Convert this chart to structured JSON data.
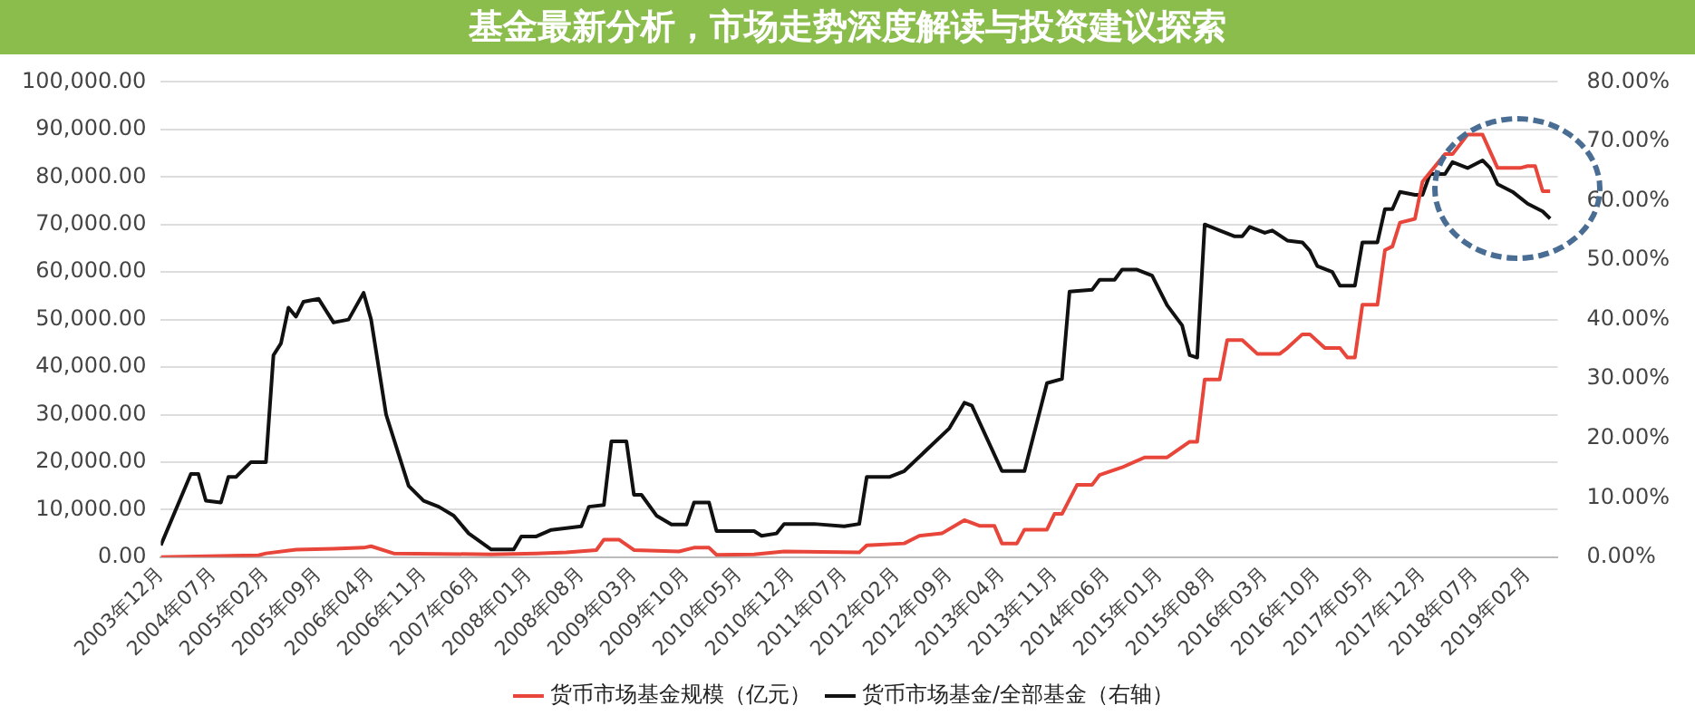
{
  "chart_data": {
    "type": "line",
    "title": "基金最新分析，市场走势深度解读与投资建议探索",
    "xlim": [
      "2003-12",
      "2019-06"
    ],
    "xticks": [
      {
        "value": "2003-12",
        "label": "2003年12月"
      },
      {
        "value": "2004-07",
        "label": "2004年07月"
      },
      {
        "value": "2005-02",
        "label": "2005年02月"
      },
      {
        "value": "2005-09",
        "label": "2005年09月"
      },
      {
        "value": "2006-04",
        "label": "2006年04月"
      },
      {
        "value": "2006-11",
        "label": "2006年11月"
      },
      {
        "value": "2007-06",
        "label": "2007年06月"
      },
      {
        "value": "2008-01",
        "label": "2008年01月"
      },
      {
        "value": "2008-08",
        "label": "2008年08月"
      },
      {
        "value": "2009-03",
        "label": "2009年03月"
      },
      {
        "value": "2009-10",
        "label": "2009年10月"
      },
      {
        "value": "2010-05",
        "label": "2010年05月"
      },
      {
        "value": "2010-12",
        "label": "2010年12月"
      },
      {
        "value": "2011-07",
        "label": "2011年07月"
      },
      {
        "value": "2012-02",
        "label": "2012年02月"
      },
      {
        "value": "2012-09",
        "label": "2012年09月"
      },
      {
        "value": "2013-04",
        "label": "2013年04月"
      },
      {
        "value": "2013-11",
        "label": "2013年11月"
      },
      {
        "value": "2014-06",
        "label": "2014年06月"
      },
      {
        "value": "2015-01",
        "label": "2015年01月"
      },
      {
        "value": "2015-08",
        "label": "2015年08月"
      },
      {
        "value": "2016-03",
        "label": "2016年03月"
      },
      {
        "value": "2016-10",
        "label": "2016年10月"
      },
      {
        "value": "2017-05",
        "label": "2017年05月"
      },
      {
        "value": "2017-12",
        "label": "2017年12月"
      },
      {
        "value": "2018-07",
        "label": "2018年07月"
      },
      {
        "value": "2019-02",
        "label": "2019年02月"
      }
    ],
    "ylim": [
      0,
      100000
    ],
    "yticks": [
      {
        "value": 0,
        "label": "0.00"
      },
      {
        "value": 10000,
        "label": "10,000.00"
      },
      {
        "value": 20000,
        "label": "20,000.00"
      },
      {
        "value": 30000,
        "label": "30,000.00"
      },
      {
        "value": 40000,
        "label": "40,000.00"
      },
      {
        "value": 50000,
        "label": "50,000.00"
      },
      {
        "value": 60000,
        "label": "60,000.00"
      },
      {
        "value": 70000,
        "label": "70,000.00"
      },
      {
        "value": 80000,
        "label": "80,000.00"
      },
      {
        "value": 90000,
        "label": "90,000.00"
      },
      {
        "value": 100000,
        "label": "100,000.00"
      }
    ],
    "y2lim": [
      0,
      80
    ],
    "y2ticks": [
      {
        "value": 0,
        "label": "0.00%"
      },
      {
        "value": 10,
        "label": "10.00%"
      },
      {
        "value": 20,
        "label": "20.00%"
      },
      {
        "value": 30,
        "label": "30.00%"
      },
      {
        "value": 40,
        "label": "40.00%"
      },
      {
        "value": 50,
        "label": "50.00%"
      },
      {
        "value": 60,
        "label": "60.00%"
      },
      {
        "value": 70,
        "label": "70.00%"
      },
      {
        "value": 80,
        "label": "80.00%"
      }
    ],
    "grid": "y",
    "legend": "bottom",
    "marker": "none",
    "line_style": "solid",
    "series": [
      {
        "name": "货币市场基金规模（亿元）",
        "color": "#e8463a",
        "x": [
          "2003-12",
          "2005-01",
          "2005-02",
          "2005-06",
          "2005-11",
          "2006-03",
          "2006-04",
          "2006-07",
          "2007-08",
          "2008-02",
          "2008-06",
          "2008-10",
          "2008-11",
          "2009-01",
          "2009-03",
          "2009-09",
          "2009-11",
          "2010-01",
          "2010-02",
          "2010-07",
          "2010-11",
          "2011-09",
          "2011-10",
          "2012-03",
          "2012-05",
          "2012-08",
          "2012-11",
          "2013-01",
          "2013-03",
          "2013-04",
          "2013-06",
          "2013-07",
          "2013-10",
          "2013-11",
          "2013-12",
          "2014-02",
          "2014-04",
          "2014-05",
          "2014-08",
          "2014-11",
          "2015-02",
          "2015-05",
          "2015-06",
          "2015-07",
          "2015-09",
          "2015-10",
          "2015-12",
          "2016-02",
          "2016-05",
          "2016-06",
          "2016-08",
          "2016-09",
          "2016-11",
          "2017-01",
          "2017-02",
          "2017-03",
          "2017-04",
          "2017-06",
          "2017-07",
          "2017-08",
          "2017-09",
          "2017-11",
          "2017-12",
          "2018-03",
          "2018-04",
          "2018-06",
          "2018-08",
          "2018-10",
          "2019-01",
          "2019-02",
          "2019-03",
          "2019-04",
          "2019-05"
        ],
        "values": [
          0,
          400,
          800,
          1600,
          1800,
          2000,
          2300,
          800,
          600,
          800,
          1000,
          1500,
          3700,
          3700,
          1500,
          1200,
          2000,
          2000,
          500,
          600,
          1200,
          1000,
          2500,
          2900,
          4500,
          5000,
          7800,
          6600,
          6600,
          2900,
          2900,
          5800,
          5800,
          9100,
          9100,
          15200,
          15200,
          17300,
          18900,
          21000,
          21000,
          24300,
          24300,
          37400,
          37400,
          45700,
          45700,
          42800,
          42800,
          44000,
          46900,
          46900,
          44000,
          44000,
          42000,
          42000,
          53100,
          53100,
          64600,
          65400,
          70400,
          71200,
          79000,
          84800,
          84800,
          88900,
          88900,
          81900,
          81900,
          82300,
          82300,
          77000,
          77000
        ]
      },
      {
        "name": "货币市场基金/全部基金（右轴）",
        "color": "#111111",
        "axis": "y2",
        "x": [
          "2003-12",
          "2004-04",
          "2004-05",
          "2004-06",
          "2004-08",
          "2004-09",
          "2004-10",
          "2004-12",
          "2005-02",
          "2005-03",
          "2005-04",
          "2005-05",
          "2005-06",
          "2005-07",
          "2005-09",
          "2005-11",
          "2006-01",
          "2006-03",
          "2006-04",
          "2006-06",
          "2006-09",
          "2006-11",
          "2007-01",
          "2007-03",
          "2007-05",
          "2007-08",
          "2007-11",
          "2007-12",
          "2008-02",
          "2008-04",
          "2008-08",
          "2008-09",
          "2008-11",
          "2008-12",
          "2009-02",
          "2009-03",
          "2009-04",
          "2009-06",
          "2009-08",
          "2009-10",
          "2009-11",
          "2010-01",
          "2010-02",
          "2010-07",
          "2010-08",
          "2010-10",
          "2010-11",
          "2011-03",
          "2011-07",
          "2011-09",
          "2011-10",
          "2012-01",
          "2012-03",
          "2012-09",
          "2012-11",
          "2012-12",
          "2013-04",
          "2013-07",
          "2013-10",
          "2013-12",
          "2014-01",
          "2014-04",
          "2014-05",
          "2014-07",
          "2014-08",
          "2014-10",
          "2014-12",
          "2015-02",
          "2015-04",
          "2015-05",
          "2015-06",
          "2015-07",
          "2015-09",
          "2015-11",
          "2015-12",
          "2016-01",
          "2016-03",
          "2016-04",
          "2016-06",
          "2016-08",
          "2016-09",
          "2016-10",
          "2016-12",
          "2017-01",
          "2017-03",
          "2017-04",
          "2017-06",
          "2017-07",
          "2017-08",
          "2017-09",
          "2017-11",
          "2017-12",
          "2018-01",
          "2018-03",
          "2018-04",
          "2018-06",
          "2018-08",
          "2018-09",
          "2018-10",
          "2018-12",
          "2019-02",
          "2019-04",
          "2019-05"
        ],
        "values": [
          2,
          14,
          14,
          9.5,
          9.2,
          13.5,
          13.5,
          16,
          16,
          34,
          36,
          42,
          40.5,
          43,
          43.5,
          39.5,
          40,
          44.5,
          40,
          24,
          12,
          9.5,
          8.5,
          7,
          4,
          1.3,
          1.3,
          3.5,
          3.5,
          4.6,
          5.2,
          8.5,
          8.8,
          19.5,
          19.5,
          10.5,
          10.5,
          7,
          5.5,
          5.5,
          9.2,
          9.2,
          4.4,
          4.4,
          3.6,
          4,
          5.6,
          5.6,
          5.2,
          5.6,
          13.5,
          13.5,
          14.5,
          21.7,
          26,
          25.5,
          14.5,
          14.5,
          29.3,
          30,
          44.7,
          45,
          46.7,
          46.7,
          48.4,
          48.4,
          47.4,
          42.4,
          39,
          34,
          33.6,
          56,
          55,
          54,
          54,
          55.6,
          54.6,
          55,
          53.3,
          53,
          51.6,
          49,
          48,
          45.7,
          45.7,
          53,
          53,
          58.6,
          58.6,
          61.5,
          61,
          61,
          64.5,
          64.5,
          66.5,
          65.5,
          66.8,
          65.5,
          62.8,
          61.5,
          59.5,
          58.2,
          57
        ]
      }
    ]
  }
}
